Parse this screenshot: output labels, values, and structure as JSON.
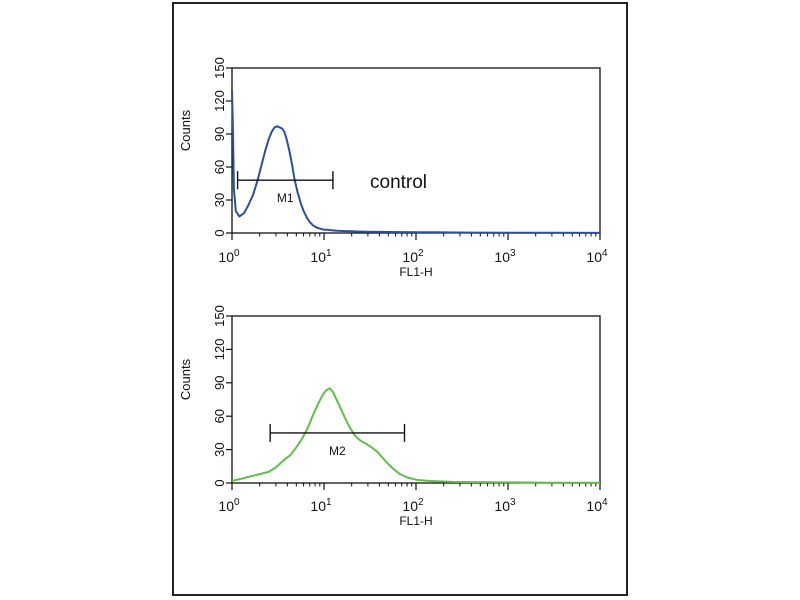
{
  "chart_data": [
    {
      "type": "line",
      "ylabel": "Counts",
      "xlabel": "FL1-H",
      "x_scale": "log",
      "xlim": [
        1,
        10000
      ],
      "ylim": [
        0,
        150
      ],
      "y_ticks": [
        "0",
        "30",
        "60",
        "90",
        "120",
        "150"
      ],
      "x_ticks": [
        {
          "base": "10",
          "exp": "0"
        },
        {
          "base": "10",
          "exp": "1"
        },
        {
          "base": "10",
          "exp": "2"
        },
        {
          "base": "10",
          "exp": "3"
        },
        {
          "base": "10",
          "exp": "4"
        }
      ],
      "annotation": "control",
      "marker": {
        "label": "M1",
        "x_start": 1.15,
        "x_end": 12.5,
        "y": 48
      },
      "series": [
        {
          "color": "#2a4f9e",
          "x": [
            1,
            1.02,
            1.05,
            1.1,
            1.2,
            1.35,
            1.5,
            1.7,
            1.9,
            2.1,
            2.3,
            2.5,
            2.7,
            2.9,
            3.1,
            3.3,
            3.5,
            3.7,
            3.9,
            4.2,
            4.5,
            4.8,
            5.2,
            5.6,
            6.0,
            6.5,
            7.0,
            7.6,
            8.3,
            9.0,
            10,
            11,
            12,
            14,
            16,
            20,
            25,
            30,
            40,
            50,
            70,
            100,
            150,
            200,
            400,
            1000,
            3000,
            10000
          ],
          "y": [
            130,
            100,
            40,
            20,
            15,
            18,
            25,
            35,
            48,
            62,
            75,
            85,
            92,
            96,
            97,
            96,
            95,
            92,
            86,
            75,
            62,
            48,
            36,
            27,
            20,
            14,
            10,
            7,
            5,
            4,
            3,
            3,
            2.5,
            2,
            1.8,
            1.5,
            1.3,
            1.1,
            1,
            0.9,
            0.8,
            0.7,
            0.6,
            0.5,
            0.4,
            0.3,
            0.2,
            0.1
          ]
        }
      ]
    },
    {
      "type": "line",
      "ylabel": "Counts",
      "xlabel": "FL1-H",
      "x_scale": "log",
      "xlim": [
        1,
        10000
      ],
      "ylim": [
        0,
        150
      ],
      "y_ticks": [
        "0",
        "30",
        "60",
        "90",
        "120",
        "150"
      ],
      "x_ticks": [
        {
          "base": "10",
          "exp": "0"
        },
        {
          "base": "10",
          "exp": "1"
        },
        {
          "base": "10",
          "exp": "2"
        },
        {
          "base": "10",
          "exp": "3"
        },
        {
          "base": "10",
          "exp": "4"
        }
      ],
      "marker": {
        "label": "M2",
        "x_start": 2.6,
        "x_end": 75,
        "y": 45
      },
      "series": [
        {
          "color": "#5fbf4a",
          "x": [
            1,
            1.3,
            1.6,
            2.0,
            2.5,
            3.0,
            3.6,
            4.3,
            5.0,
            5.8,
            6.7,
            7.5,
            8.5,
            9.5,
            10.5,
            11.5,
            12.5,
            13.5,
            15,
            17,
            19,
            22,
            25,
            29,
            33,
            38,
            44,
            50,
            58,
            67,
            80,
            100,
            130,
            170,
            250,
            400,
            1000,
            3000,
            10000
          ],
          "y": [
            2,
            4,
            6,
            8,
            10,
            14,
            20,
            25,
            32,
            40,
            50,
            60,
            70,
            78,
            83,
            85,
            82,
            76,
            68,
            58,
            50,
            42,
            38,
            35,
            32,
            28,
            22,
            17,
            12,
            8,
            5,
            3,
            2,
            1.5,
            1,
            0.8,
            0.5,
            0.3,
            0.2
          ]
        }
      ]
    }
  ]
}
